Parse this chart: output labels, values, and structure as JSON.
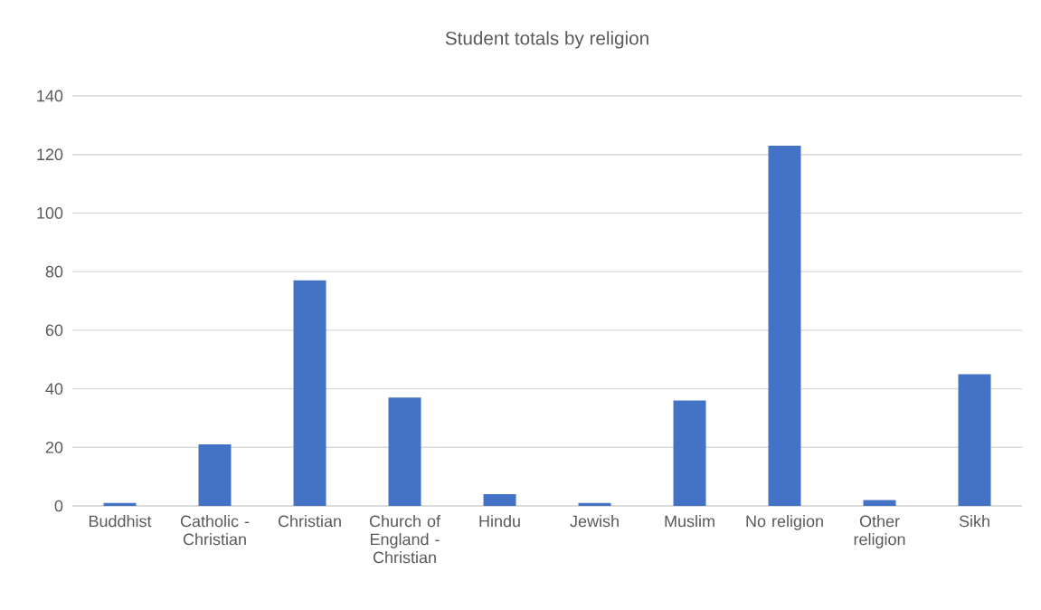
{
  "chart_data": {
    "type": "bar",
    "title": "Student totals by religion",
    "categories": [
      "Buddhist",
      "Catholic - Christian",
      "Christian",
      "Church of England - Christian",
      "Hindu",
      "Jewish",
      "Muslim",
      "No religion",
      "Other religion",
      "Sikh"
    ],
    "values": [
      1,
      21,
      77,
      37,
      4,
      1,
      36,
      123,
      2,
      45
    ],
    "color": "#4472c4",
    "ylim": [
      0,
      140
    ],
    "yticks": [
      0,
      20,
      40,
      60,
      80,
      100,
      120,
      140
    ],
    "grid": "y"
  }
}
